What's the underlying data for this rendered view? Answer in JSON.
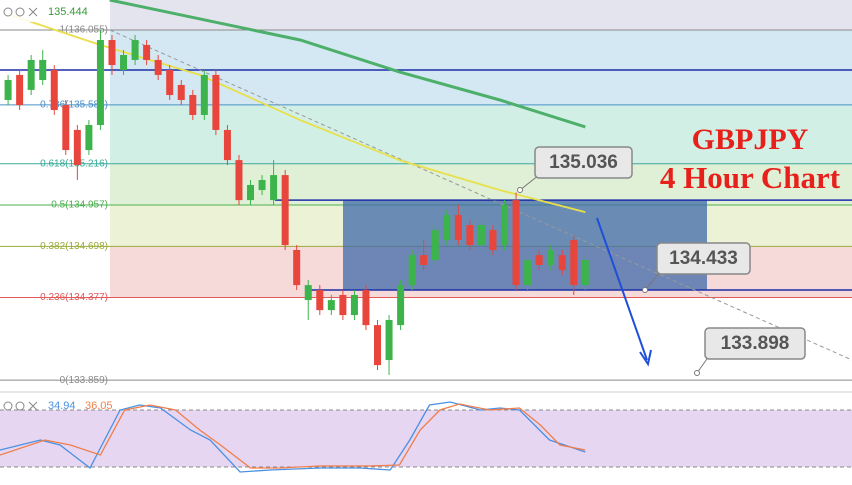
{
  "chart_data": {
    "type": "candlestick",
    "title": "GBPJPY",
    "subtitle": "4 Hour Chart",
    "last_price": 135.444,
    "xlim": [
      -0.7,
      73.1
    ],
    "ylim": [
      133.797,
      136.243
    ],
    "up_color": "#3cb44b",
    "down_color": "#e8453c",
    "candles": [
      [
        135.616,
        135.773,
        135.584,
        135.741
      ],
      [
        135.773,
        135.804,
        135.553,
        135.584
      ],
      [
        135.679,
        135.898,
        135.647,
        135.867
      ],
      [
        135.741,
        135.93,
        135.71,
        135.867
      ],
      [
        135.804,
        135.835,
        135.522,
        135.553
      ],
      [
        135.584,
        135.616,
        135.271,
        135.302
      ],
      [
        135.428,
        135.459,
        135.114,
        135.208
      ],
      [
        135.302,
        135.49,
        135.271,
        135.459
      ],
      [
        135.459,
        136.055,
        135.428,
        135.992
      ],
      [
        135.992,
        136.023,
        135.773,
        135.835
      ],
      [
        135.804,
        135.93,
        135.773,
        135.898
      ],
      [
        135.867,
        136.023,
        135.835,
        135.992
      ],
      [
        135.961,
        135.992,
        135.835,
        135.867
      ],
      [
        135.867,
        135.898,
        135.741,
        135.773
      ],
      [
        135.804,
        135.835,
        135.616,
        135.647
      ],
      [
        135.71,
        135.741,
        135.584,
        135.616
      ],
      [
        135.647,
        135.679,
        135.49,
        135.522
      ],
      [
        135.522,
        135.804,
        135.49,
        135.773
      ],
      [
        135.773,
        135.804,
        135.396,
        135.428
      ],
      [
        135.428,
        135.459,
        135.208,
        135.239
      ],
      [
        135.239,
        135.271,
        134.957,
        134.988
      ],
      [
        134.988,
        135.114,
        134.957,
        135.083
      ],
      [
        135.051,
        135.145,
        135.02,
        135.114
      ],
      [
        134.988,
        135.239,
        134.957,
        135.145
      ],
      [
        135.145,
        135.177,
        134.675,
        134.706
      ],
      [
        134.675,
        134.706,
        134.424,
        134.455
      ],
      [
        134.361,
        134.487,
        134.236,
        134.455
      ],
      [
        134.424,
        134.455,
        134.267,
        134.298
      ],
      [
        134.298,
        134.393,
        134.267,
        134.361
      ],
      [
        134.393,
        134.424,
        134.236,
        134.267
      ],
      [
        134.267,
        134.424,
        134.236,
        134.393
      ],
      [
        134.424,
        134.455,
        134.173,
        134.204
      ],
      [
        134.204,
        134.236,
        133.922,
        133.953
      ],
      [
        133.985,
        134.267,
        133.891,
        134.236
      ],
      [
        134.204,
        134.487,
        134.173,
        134.455
      ],
      [
        134.455,
        134.675,
        134.424,
        134.643
      ],
      [
        134.643,
        134.738,
        134.549,
        134.581
      ],
      [
        134.612,
        134.832,
        134.581,
        134.8
      ],
      [
        134.738,
        134.926,
        134.706,
        134.894
      ],
      [
        134.894,
        134.957,
        134.706,
        134.738
      ],
      [
        134.832,
        134.863,
        134.675,
        134.706
      ],
      [
        134.706,
        134.863,
        134.675,
        134.832
      ],
      [
        134.8,
        134.832,
        134.643,
        134.675
      ],
      [
        134.706,
        134.988,
        134.675,
        134.957
      ],
      [
        134.988,
        135.036,
        134.424,
        134.455
      ],
      [
        134.455,
        134.643,
        134.424,
        134.612
      ],
      [
        134.643,
        134.675,
        134.549,
        134.581
      ],
      [
        134.581,
        134.706,
        134.549,
        134.675
      ],
      [
        134.643,
        134.675,
        134.518,
        134.549
      ],
      [
        134.738,
        134.769,
        134.393,
        134.455
      ],
      [
        134.455,
        134.643,
        134.424,
        134.612
      ]
    ],
    "fib_levels": [
      {
        "value": 136.055,
        "label": "1(136.055)"
      },
      {
        "value": 135.585,
        "label": "0.786(135.585)"
      },
      {
        "value": 135.216,
        "label": "0.618(135.216)"
      },
      {
        "value": 134.957,
        "label": "0.5(134.957)"
      },
      {
        "value": 134.698,
        "label": "0.382(134.698)"
      },
      {
        "value": 134.377,
        "label": "0.236(134.377)"
      },
      {
        "value": 133.859,
        "label": "0(133.859)"
      }
    ],
    "fib_line_colors": [
      "#8a8a8a",
      "#4a90c8",
      "#3aaa9a",
      "#4caf50",
      "#9aab3a",
      "#e05a5a",
      "#8a8a8a"
    ],
    "fib_band_colors": [
      "#d3e8f2",
      "#d2efe6",
      "#dff0d6",
      "#ecf2d6",
      "#f6d9d9"
    ],
    "hlines": [
      135.804,
      134.988,
      134.424
    ],
    "zone": {
      "low": 134.424,
      "high": 134.988
    },
    "moving_averages": [
      {
        "color": "#e8e04a",
        "x": [
          0.2,
          8,
          16.6,
          25.3,
          33.9,
          42.6,
          50
        ],
        "values": [
          136.149,
          135.961,
          135.773,
          135.49,
          135.239,
          135.051,
          134.913
        ]
      },
      {
        "color": "#4caf6a",
        "x": [
          8.8,
          25.3,
          33.9,
          42.6,
          50
        ],
        "values": [
          136.243,
          135.992,
          135.792,
          135.616,
          135.447
        ]
      }
    ],
    "annotations": [
      135.036,
      134.433,
      133.898
    ],
    "stochastic": {
      "ylim": [
        0,
        100
      ],
      "levels": [
        80,
        20
      ],
      "readout": [
        34.94,
        36.05
      ],
      "series": [
        {
          "color": "#4a90e2",
          "x": [
            -0.7,
            2.8,
            4.5,
            7.1,
            9.7,
            11.4,
            13.2,
            15.8,
            17.5,
            20.1,
            22.7,
            27.0,
            30.5,
            33.1,
            34.8,
            36.5,
            38.3,
            40.9,
            42.6,
            44.3,
            46.9,
            48.2,
            50
          ],
          "values": [
            37.9,
            48.4,
            43.2,
            18.9,
            80,
            85.3,
            82.1,
            58.9,
            48.4,
            14.7,
            16.8,
            18.9,
            18.9,
            16.8,
            48.4,
            85.3,
            88.4,
            80,
            82.1,
            80,
            48.4,
            43.2,
            35.8
          ]
        },
        {
          "color": "#f07e4a",
          "x": [
            -0.7,
            3.2,
            5.4,
            8,
            10.1,
            12.3,
            14.5,
            16.6,
            18.4,
            21,
            23.5,
            27,
            31.3,
            33.9,
            35.7,
            37.4,
            39.1,
            41.7,
            44.3,
            46.1,
            47.8,
            50
          ],
          "values": [
            32.6,
            48.4,
            43.2,
            32.6,
            80,
            85.3,
            80,
            58.9,
            43.2,
            18.9,
            18.9,
            21.1,
            21.1,
            22.1,
            58.9,
            80,
            86.3,
            80,
            82.1,
            64.2,
            43.2,
            37.9
          ]
        }
      ]
    }
  }
}
